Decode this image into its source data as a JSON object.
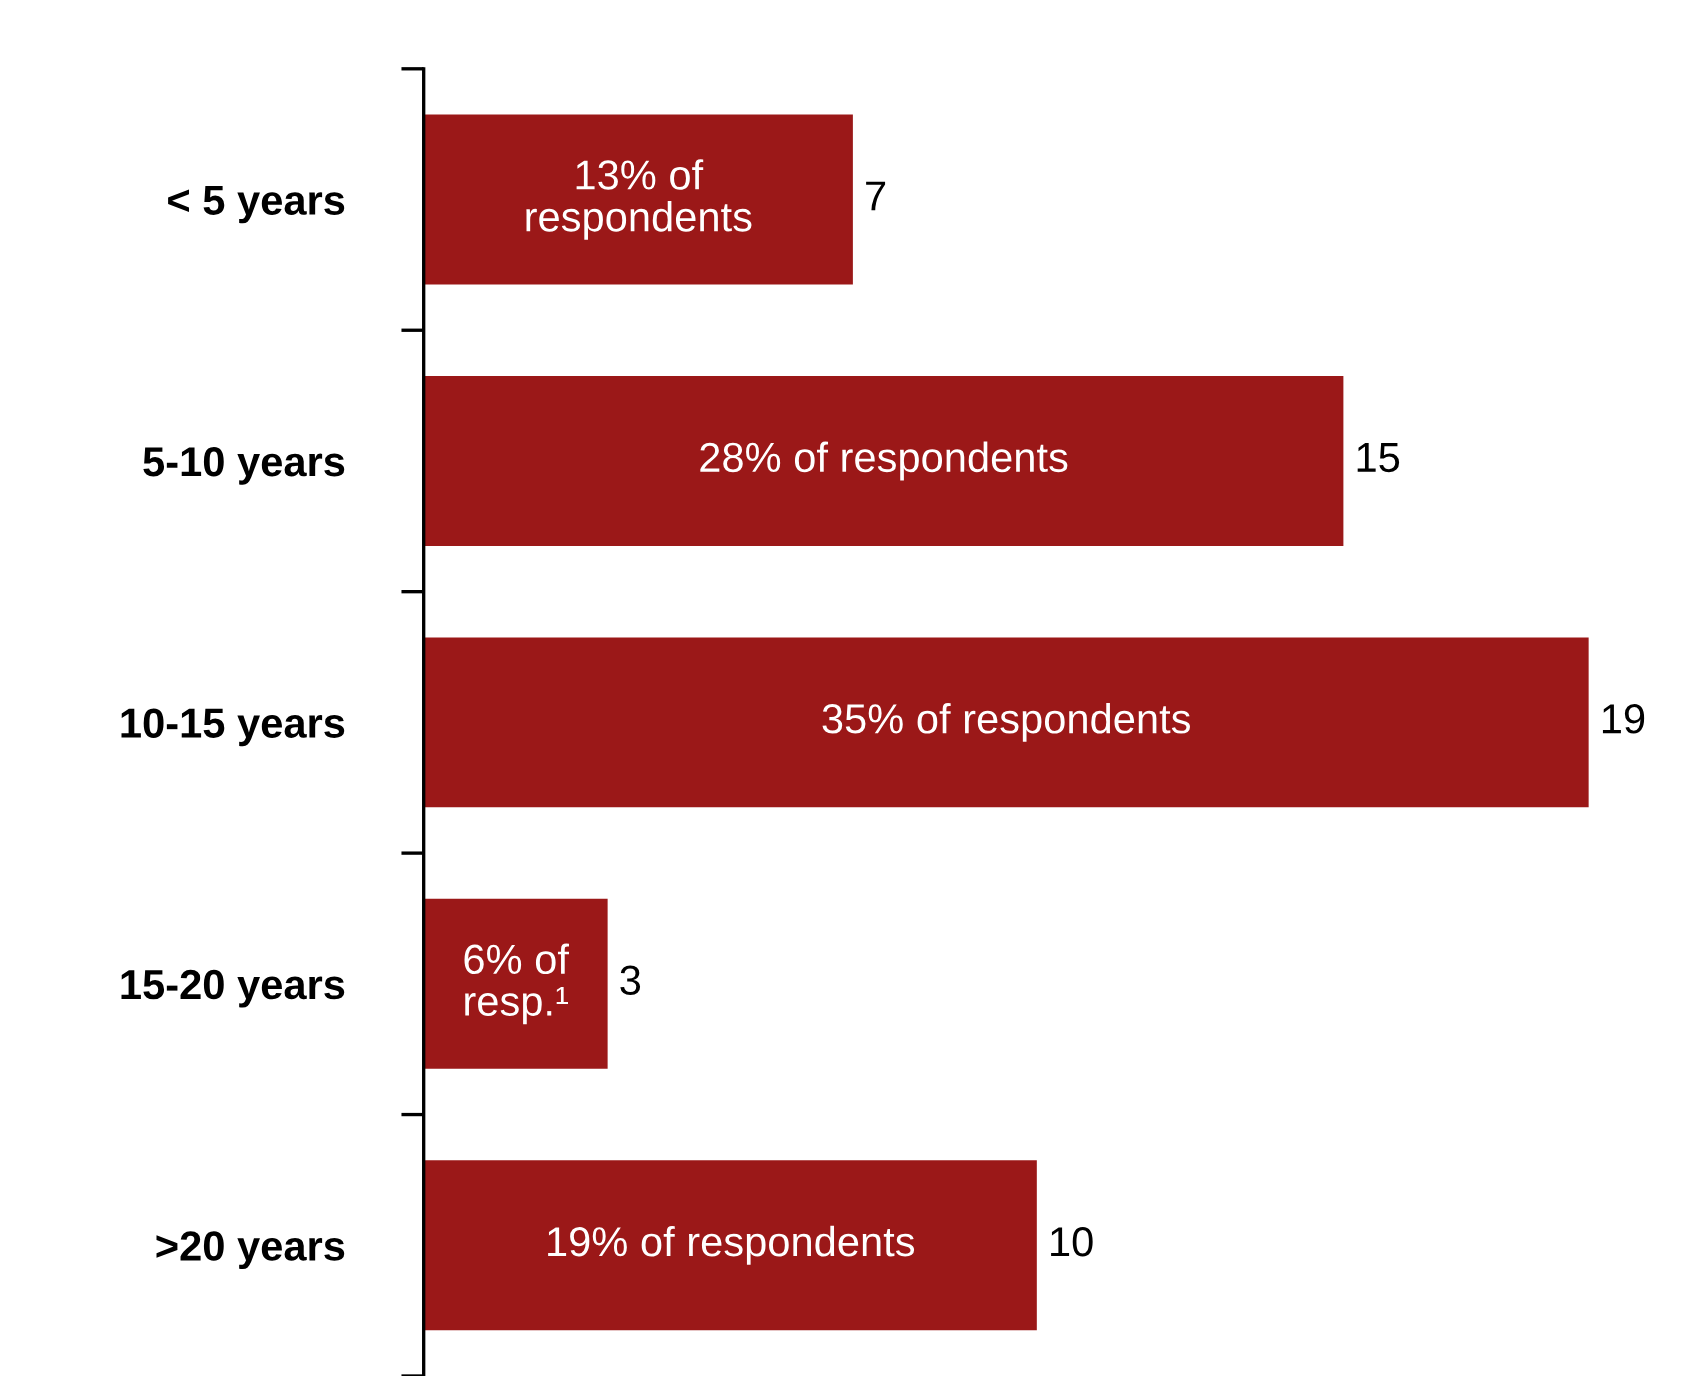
{
  "chart_data": {
    "type": "bar",
    "orientation": "horizontal",
    "categories": [
      "< 5 years",
      "5-10 years",
      "10-15 years",
      "15-20 years",
      ">20 years"
    ],
    "values": [
      7,
      15,
      19,
      3,
      10
    ],
    "color": "#9b1818",
    "data_labels": true,
    "grid": false,
    "legend": false,
    "annotations": [
      "13% of\nrespondents",
      "28% of respondents",
      "35% of respondents",
      "6% of\nresp.¹",
      "19% of respondents"
    ]
  }
}
